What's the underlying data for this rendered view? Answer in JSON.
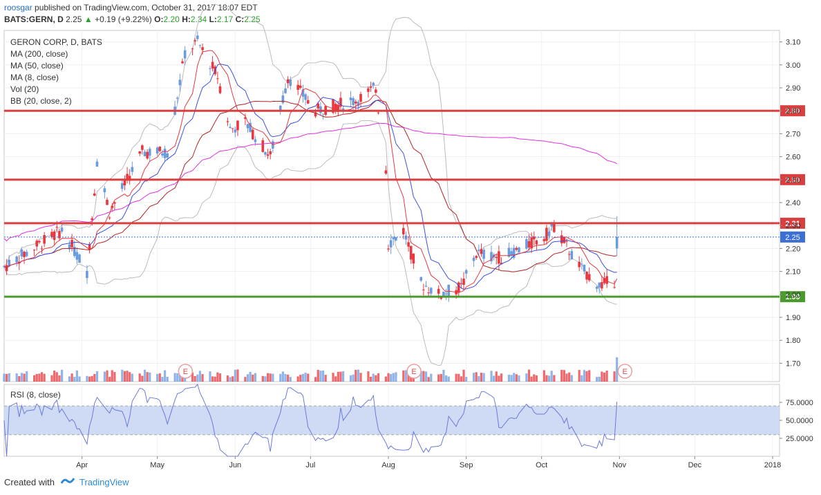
{
  "header": {
    "author": "roosgar",
    "published_text": "published on TradingView.com, October 31, 2017 18:07 EDT",
    "symbol": "BATS:GERN, D",
    "last": "2.25",
    "change": "+0.19 (+9.22%)",
    "o_label": "O:",
    "o_value": "2.20",
    "h_label": "H:",
    "h_value": "2.34",
    "l_label": "L:",
    "l_value": "2.17",
    "c_label": "C:",
    "c_value": "2.25"
  },
  "legend": {
    "title": "GERON CORP, D, BATS",
    "ma200": "MA (200, close)",
    "ma50": "MA (50, close)",
    "ma8": "MA (8, close)",
    "vol": "Vol (20)",
    "bb": "BB (20, close, 2)"
  },
  "rsi_label": "RSI (8, close)",
  "footer": {
    "created_with": "Created with",
    "brand": "TradingView"
  },
  "colors": {
    "up": "#6a9be0",
    "down": "#e8373e",
    "ma8": "#e8373e",
    "ma50": "#3a4fe0",
    "ma200": "#b22222",
    "bb_basis": "#e031e0",
    "bb_band": "#bbbbbb",
    "level_red": "#d93f3f",
    "level_green": "#4a9a2e",
    "rsi_line": "#6b79d8",
    "rsi_band": "#c7d5f2"
  },
  "chart_data": {
    "type": "candlestick",
    "ylim": [
      1.62,
      3.15
    ],
    "y_ticks": [
      "3.10",
      "3.00",
      "2.90",
      "2.80",
      "2.70",
      "2.60",
      "2.50",
      "2.40",
      "2.30",
      "2.20",
      "2.10",
      "2.00",
      "1.90",
      "1.80",
      "1.70"
    ],
    "x_ticks": [
      "Apr",
      "May",
      "Jun",
      "Jul",
      "Aug",
      "Sep",
      "Oct",
      "Nov",
      "Dec",
      "2018"
    ],
    "x_range": [
      "2017-03-01",
      "2018-01-01"
    ],
    "levels": [
      {
        "label": "2.80",
        "value": 2.8,
        "color": "red"
      },
      {
        "label": "2.50",
        "value": 2.5,
        "color": "red"
      },
      {
        "label": "2.31",
        "value": 2.31,
        "color": "red"
      },
      {
        "label": "1.99",
        "value": 1.99,
        "color": "green"
      }
    ],
    "last_price_label": "2.25",
    "last_price": 2.25,
    "earnings_markers": [
      "E",
      "E",
      "E"
    ],
    "earnings_dates": [
      "2017-05-10",
      "2017-08-09",
      "2017-11-01"
    ],
    "key_prices": [
      {
        "date": "2017-03-01",
        "close": 2.12
      },
      {
        "date": "2017-03-24",
        "close": 2.28
      },
      {
        "date": "2017-04-03",
        "close": 2.1
      },
      {
        "date": "2017-04-07",
        "close": 2.58
      },
      {
        "date": "2017-04-12",
        "close": 2.36
      },
      {
        "date": "2017-04-25",
        "close": 2.62
      },
      {
        "date": "2017-05-05",
        "close": 2.62
      },
      {
        "date": "2017-05-12",
        "close": 3.05
      },
      {
        "date": "2017-05-17",
        "close": 3.1
      },
      {
        "date": "2017-05-25",
        "close": 2.95
      },
      {
        "date": "2017-05-30",
        "close": 2.72
      },
      {
        "date": "2017-06-05",
        "close": 2.75
      },
      {
        "date": "2017-06-15",
        "close": 2.6
      },
      {
        "date": "2017-06-22",
        "close": 2.95
      },
      {
        "date": "2017-07-03",
        "close": 2.8
      },
      {
        "date": "2017-07-20",
        "close": 2.85
      },
      {
        "date": "2017-07-27",
        "close": 2.9
      },
      {
        "date": "2017-07-31",
        "close": 2.55
      },
      {
        "date": "2017-08-01",
        "close": 2.22
      },
      {
        "date": "2017-08-07",
        "close": 2.28
      },
      {
        "date": "2017-08-14",
        "close": 2.05
      },
      {
        "date": "2017-08-21",
        "close": 2.0
      },
      {
        "date": "2017-08-30",
        "close": 2.03
      },
      {
        "date": "2017-09-05",
        "close": 2.18
      },
      {
        "date": "2017-09-15",
        "close": 2.16
      },
      {
        "date": "2017-10-02",
        "close": 2.25
      },
      {
        "date": "2017-10-06",
        "close": 2.3
      },
      {
        "date": "2017-10-16",
        "close": 2.12
      },
      {
        "date": "2017-10-24",
        "close": 2.04
      },
      {
        "date": "2017-10-30",
        "close": 2.06
      },
      {
        "date": "2017-10-31",
        "close": 2.25
      }
    ],
    "rsi": {
      "ticks": [
        "75.0000",
        "50.0000",
        "25.0000"
      ],
      "ylim": [
        0,
        100
      ],
      "band": [
        30,
        70
      ]
    }
  }
}
